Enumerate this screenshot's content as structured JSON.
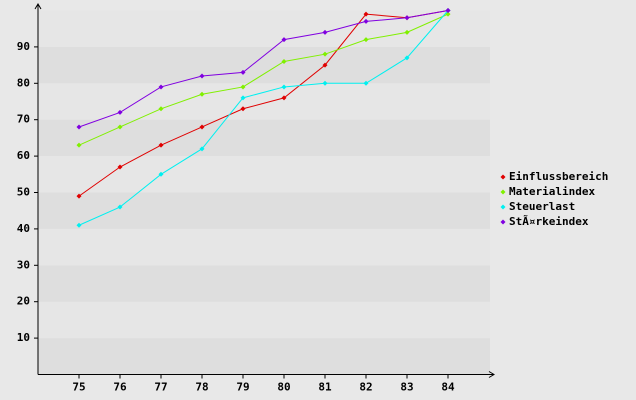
{
  "chart_data": {
    "type": "line",
    "categories": [
      "75",
      "76",
      "77",
      "78",
      "79",
      "80",
      "81",
      "82",
      "83",
      "84"
    ],
    "series": [
      {
        "name": "Einflussbereich",
        "color": "#e00000",
        "values": [
          49,
          57,
          63,
          68,
          73,
          76,
          85,
          99,
          98,
          100
        ]
      },
      {
        "name": "Materialindex",
        "color": "#80f000",
        "values": [
          63,
          68,
          73,
          77,
          79,
          86,
          88,
          92,
          94,
          99
        ]
      },
      {
        "name": "Steuerlast",
        "color": "#00f0f0",
        "values": [
          41,
          46,
          55,
          62,
          76,
          79,
          80,
          80,
          87,
          100
        ]
      },
      {
        "name": "StÃ¤rkeindex",
        "color": "#8000e0",
        "values": [
          68,
          72,
          79,
          82,
          83,
          92,
          94,
          97,
          98,
          100
        ]
      }
    ],
    "ylim": [
      0,
      100
    ],
    "yticks": [
      10,
      20,
      30,
      40,
      50,
      60,
      70,
      80,
      90
    ],
    "grid": true
  }
}
